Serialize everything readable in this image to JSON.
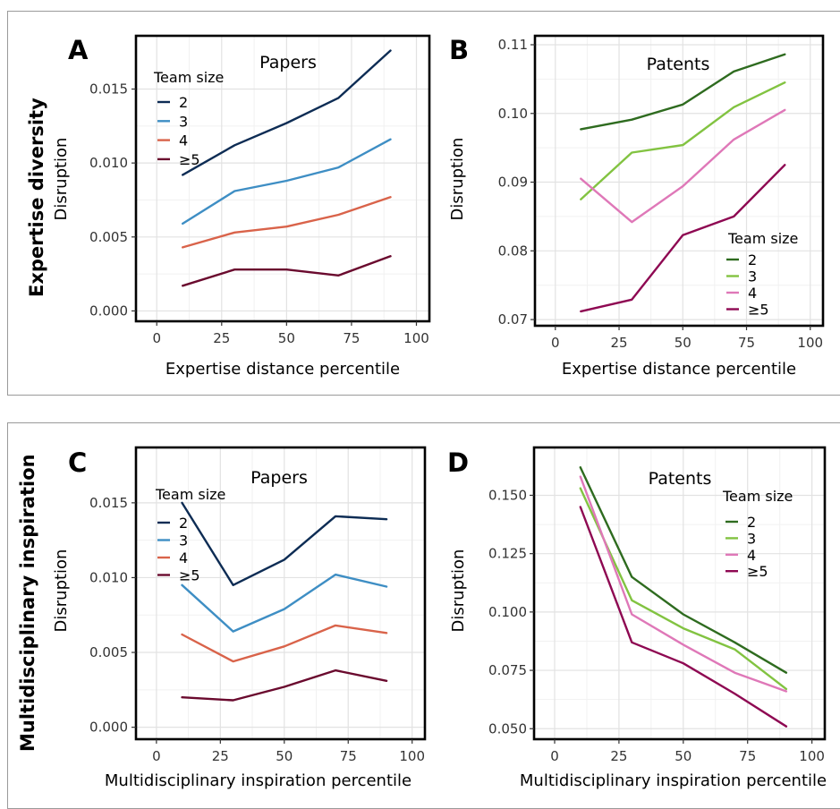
{
  "row_labels": [
    "Expertise diversity",
    "Multidisciplinary inspiration"
  ],
  "chart_data": [
    {
      "panel": "A",
      "type": "line",
      "title": "Papers",
      "xlabel": "Expertise distance percentile",
      "ylabel": "Disruption",
      "xlim": [
        -8,
        105
      ],
      "ylim": [
        -0.0007,
        0.0186
      ],
      "xticks": [
        0,
        25,
        50,
        75,
        100
      ],
      "xtick_labels": [
        "0",
        "25",
        "50",
        "75",
        "100"
      ],
      "yticks": [
        0,
        0.005,
        0.01,
        0.015
      ],
      "ytick_labels": [
        "0.000",
        "0.005",
        "0.010",
        "0.015"
      ],
      "grid": true,
      "legend_title": "Team size",
      "legend_position": "top-left",
      "x": [
        10,
        30,
        50,
        70,
        90
      ],
      "series": [
        {
          "name": "2",
          "color": "#0d2c54",
          "values": [
            0.0092,
            0.0112,
            0.0127,
            0.0144,
            0.0176
          ]
        },
        {
          "name": "3",
          "color": "#3e8ec4",
          "values": [
            0.0059,
            0.0081,
            0.0088,
            0.0097,
            0.0116
          ]
        },
        {
          "name": "4",
          "color": "#d9634a",
          "values": [
            0.0043,
            0.0053,
            0.0057,
            0.0065,
            0.0077
          ]
        },
        {
          "name": "≥5",
          "color": "#6a0a2e",
          "values": [
            0.0017,
            0.0028,
            0.0028,
            0.0024,
            0.0037
          ]
        }
      ]
    },
    {
      "panel": "B",
      "type": "line",
      "title": "Patents",
      "xlabel": "Expertise distance percentile",
      "ylabel": "Disruption",
      "xlim": [
        -8,
        105
      ],
      "ylim": [
        0.0691,
        0.1113
      ],
      "xticks": [
        0,
        25,
        50,
        75,
        100
      ],
      "xtick_labels": [
        "0",
        "25",
        "50",
        "75",
        "100"
      ],
      "yticks": [
        0.07,
        0.08,
        0.09,
        0.1,
        0.11
      ],
      "ytick_labels": [
        "0.07",
        "0.08",
        "0.09",
        "0.10",
        "0.11"
      ],
      "grid": true,
      "legend_title": "Team size",
      "legend_position": "bottom-right",
      "x": [
        10,
        30,
        50,
        70,
        90
      ],
      "series": [
        {
          "name": "2",
          "color": "#2e6b1f",
          "values": [
            0.0977,
            0.0991,
            0.1013,
            0.1061,
            0.1086
          ]
        },
        {
          "name": "3",
          "color": "#82c341",
          "values": [
            0.0875,
            0.0943,
            0.0954,
            0.1009,
            0.1045
          ]
        },
        {
          "name": "4",
          "color": "#df78b8",
          "values": [
            0.0905,
            0.0842,
            0.0894,
            0.0962,
            0.1005
          ]
        },
        {
          "name": "≥5",
          "color": "#8e0852",
          "values": [
            0.0712,
            0.0729,
            0.0823,
            0.085,
            0.0925
          ]
        }
      ]
    },
    {
      "panel": "C",
      "type": "line",
      "title": "Papers",
      "xlabel": "Multidisciplinary inspiration percentile",
      "ylabel": "Disruption",
      "xlim": [
        -8,
        105
      ],
      "ylim": [
        -0.0008,
        0.0187
      ],
      "xticks": [
        0,
        25,
        50,
        75,
        100
      ],
      "xtick_labels": [
        "0",
        "25",
        "50",
        "75",
        "100"
      ],
      "yticks": [
        0,
        0.005,
        0.01,
        0.015
      ],
      "ytick_labels": [
        "0.000",
        "0.005",
        "0.010",
        "0.015"
      ],
      "grid": true,
      "legend_title": "Team size",
      "legend_position": "top-left",
      "x": [
        10,
        30,
        50,
        70,
        90
      ],
      "series": [
        {
          "name": "2",
          "color": "#0d2c54",
          "values": [
            0.015,
            0.0095,
            0.0112,
            0.0141,
            0.0139
          ]
        },
        {
          "name": "3",
          "color": "#3e8ec4",
          "values": [
            0.0095,
            0.0064,
            0.0079,
            0.0102,
            0.0094
          ]
        },
        {
          "name": "4",
          "color": "#d9634a",
          "values": [
            0.0062,
            0.0044,
            0.0054,
            0.0068,
            0.0063
          ]
        },
        {
          "name": "≥5",
          "color": "#6a0a2e",
          "values": [
            0.002,
            0.0018,
            0.0027,
            0.0038,
            0.0031
          ]
        }
      ]
    },
    {
      "panel": "D",
      "type": "line",
      "title": "Patents",
      "xlabel": "Multidisciplinary inspiration percentile",
      "ylabel": "Disruption",
      "xlim": [
        -8,
        105
      ],
      "ylim": [
        0.0455,
        0.1705
      ],
      "xticks": [
        0,
        25,
        50,
        75,
        100
      ],
      "xtick_labels": [
        "0",
        "25",
        "50",
        "75",
        "100"
      ],
      "yticks": [
        0.05,
        0.075,
        0.1,
        0.125,
        0.15
      ],
      "ytick_labels": [
        "0.050",
        "0.075",
        "0.100",
        "0.125",
        "0.150"
      ],
      "grid": true,
      "legend_title": "Team size",
      "legend_position": "top-right",
      "x": [
        10,
        30,
        50,
        70,
        90
      ],
      "series": [
        {
          "name": "2",
          "color": "#2e6b1f",
          "values": [
            0.162,
            0.115,
            0.099,
            0.087,
            0.074
          ]
        },
        {
          "name": "3",
          "color": "#82c341",
          "values": [
            0.153,
            0.105,
            0.093,
            0.084,
            0.067
          ]
        },
        {
          "name": "4",
          "color": "#df78b8",
          "values": [
            0.158,
            0.099,
            0.086,
            0.074,
            0.066
          ]
        },
        {
          "name": "≥5",
          "color": "#8e0852",
          "values": [
            0.145,
            0.087,
            0.078,
            0.065,
            0.051
          ]
        }
      ]
    }
  ]
}
